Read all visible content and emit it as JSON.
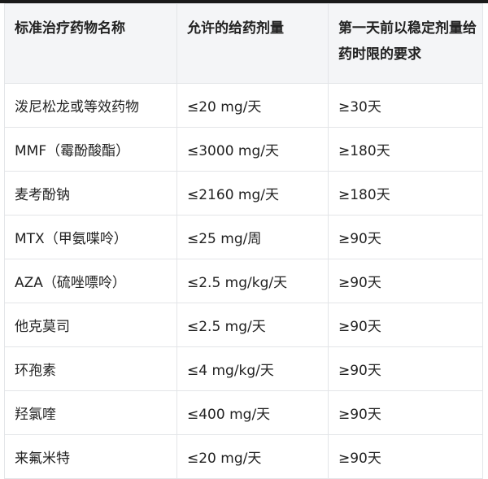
{
  "table": {
    "headers": [
      "标准治疗药物名称",
      "允许的给药剂量",
      "第一天前以稳定剂量给药时限的要求"
    ],
    "rows": [
      [
        "泼尼松龙或等效药物",
        "≤20 mg/天",
        "≥30天"
      ],
      [
        "MMF（霉酚酸酯）",
        "≤3000 mg/天",
        "≥180天"
      ],
      [
        "麦考酚钠",
        "≤2160 mg/天",
        "≥180天"
      ],
      [
        "MTX（甲氨喋呤）",
        "≤25 mg/周",
        "≥90天"
      ],
      [
        "AZA（硫唑嘌呤）",
        "≤2.5 mg/kg/天",
        "≥90天"
      ],
      [
        "他克莫司",
        "≤2.5 mg/天",
        "≥90天"
      ],
      [
        "环孢素",
        "≤4 mg/kg/天",
        "≥90天"
      ],
      [
        "羟氯喹",
        "≤400 mg/天",
        "≥90天"
      ],
      [
        "来氟米特",
        "≤20 mg/天",
        "≥90天"
      ]
    ]
  }
}
